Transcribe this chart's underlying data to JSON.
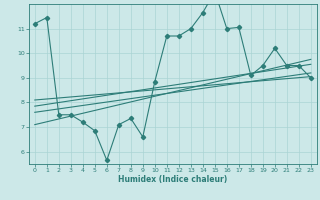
{
  "xlabel": "Humidex (Indice chaleur)",
  "bg_color": "#cce8e8",
  "grid_color": "#aad4d4",
  "line_color": "#2d7d78",
  "xlim": [
    -0.5,
    23.5
  ],
  "ylim": [
    5.5,
    12.0
  ],
  "yticks": [
    6,
    7,
    8,
    9,
    10,
    11
  ],
  "xticks": [
    0,
    1,
    2,
    3,
    4,
    5,
    6,
    7,
    8,
    9,
    10,
    11,
    12,
    13,
    14,
    15,
    16,
    17,
    18,
    19,
    20,
    21,
    22,
    23
  ],
  "scatter_x": [
    0,
    1,
    2,
    3,
    4,
    5,
    6,
    7,
    8,
    9,
    10,
    11,
    12,
    13,
    14,
    15,
    16,
    17,
    18,
    19,
    20,
    21,
    22,
    23
  ],
  "scatter_y": [
    11.2,
    11.45,
    7.5,
    7.5,
    7.2,
    6.85,
    5.65,
    7.1,
    7.35,
    6.6,
    8.85,
    10.7,
    10.7,
    11.0,
    11.65,
    12.5,
    11.0,
    11.05,
    9.1,
    9.5,
    10.2,
    9.5,
    9.5,
    9.0
  ],
  "reg_lines": [
    {
      "x": [
        0,
        23
      ],
      "y": [
        7.6,
        9.2
      ]
    },
    {
      "x": [
        0,
        23
      ],
      "y": [
        7.85,
        9.55
      ]
    },
    {
      "x": [
        0,
        23
      ],
      "y": [
        8.1,
        9.05
      ]
    },
    {
      "x": [
        0,
        23
      ],
      "y": [
        7.1,
        9.75
      ]
    }
  ]
}
